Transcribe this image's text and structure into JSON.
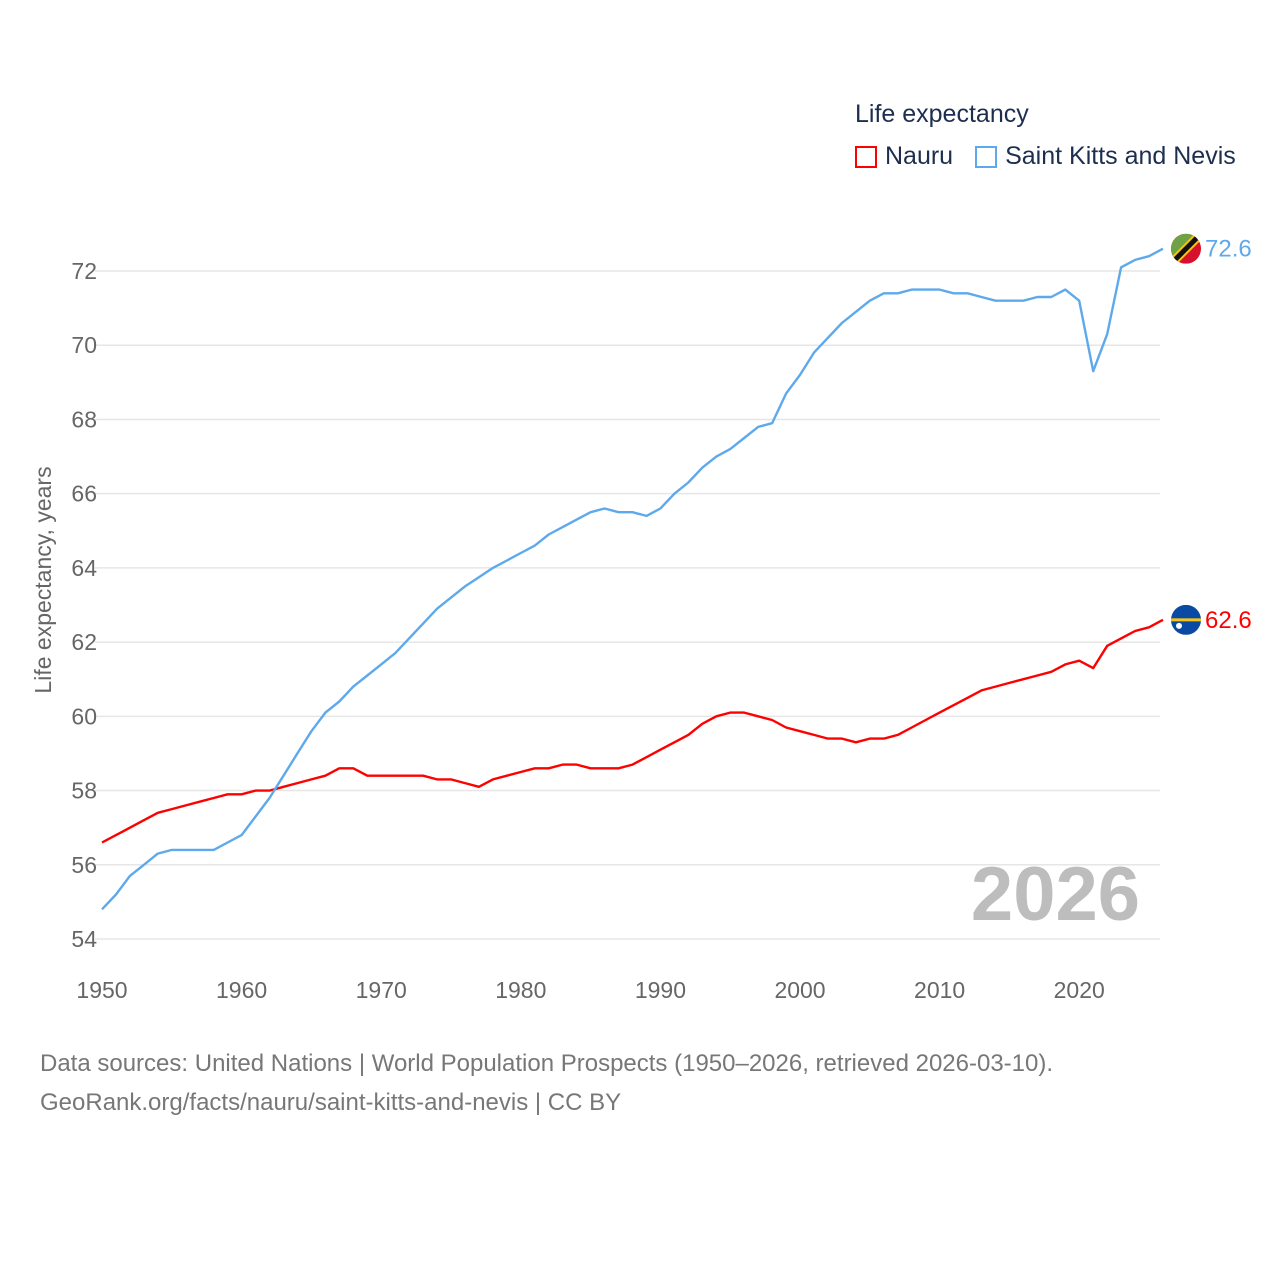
{
  "chart_data": {
    "type": "line",
    "title": "",
    "legend_title": "Life expectancy",
    "legend_placement": "top-right",
    "xlabel": "",
    "ylabel": "Life expectancy, years",
    "xlim": [
      1950,
      2026
    ],
    "ylim": [
      54,
      72.6
    ],
    "x_ticks": [
      "1950",
      "1960",
      "1970",
      "1980",
      "1990",
      "2000",
      "2010",
      "2020"
    ],
    "y_ticks": [
      "54",
      "56",
      "58",
      "60",
      "62",
      "64",
      "66",
      "68",
      "70",
      "72"
    ],
    "grid": true,
    "year_watermark": "2026",
    "x": [
      1950,
      1951,
      1952,
      1953,
      1954,
      1955,
      1956,
      1957,
      1958,
      1959,
      1960,
      1961,
      1962,
      1963,
      1964,
      1965,
      1966,
      1967,
      1968,
      1969,
      1970,
      1971,
      1972,
      1973,
      1974,
      1975,
      1976,
      1977,
      1978,
      1979,
      1980,
      1981,
      1982,
      1983,
      1984,
      1985,
      1986,
      1987,
      1988,
      1989,
      1990,
      1991,
      1992,
      1993,
      1994,
      1995,
      1996,
      1997,
      1998,
      1999,
      2000,
      2001,
      2002,
      2003,
      2004,
      2005,
      2006,
      2007,
      2008,
      2009,
      2010,
      2011,
      2012,
      2013,
      2014,
      2015,
      2016,
      2017,
      2018,
      2019,
      2020,
      2021,
      2022,
      2023,
      2024,
      2025,
      2026
    ],
    "series": [
      {
        "name": "Nauru",
        "color": "#ff0000",
        "end_label": "62.6",
        "values": [
          56.6,
          56.8,
          57.0,
          57.2,
          57.4,
          57.5,
          57.6,
          57.7,
          57.8,
          57.9,
          57.9,
          58.0,
          58.0,
          58.1,
          58.2,
          58.3,
          58.4,
          58.6,
          58.6,
          58.4,
          58.4,
          58.4,
          58.4,
          58.4,
          58.3,
          58.3,
          58.2,
          58.1,
          58.3,
          58.4,
          58.5,
          58.6,
          58.6,
          58.7,
          58.7,
          58.6,
          58.6,
          58.6,
          58.7,
          58.9,
          59.1,
          59.3,
          59.5,
          59.8,
          60.0,
          60.1,
          60.1,
          60.0,
          59.9,
          59.7,
          59.6,
          59.5,
          59.4,
          59.4,
          59.3,
          59.4,
          59.4,
          59.5,
          59.7,
          59.9,
          60.1,
          60.3,
          60.5,
          60.7,
          60.8,
          60.9,
          61.0,
          61.1,
          61.2,
          61.4,
          61.5,
          61.3,
          61.9,
          62.1,
          62.3,
          62.4,
          62.6
        ]
      },
      {
        "name": "Saint Kitts and Nevis",
        "color": "#5ea9ec",
        "end_label": "72.6",
        "values": [
          54.8,
          55.2,
          55.7,
          56.0,
          56.3,
          56.4,
          56.4,
          56.4,
          56.4,
          56.6,
          56.8,
          57.3,
          57.8,
          58.4,
          59.0,
          59.6,
          60.1,
          60.4,
          60.8,
          61.1,
          61.4,
          61.7,
          62.1,
          62.5,
          62.9,
          63.2,
          63.5,
          63.75,
          64.0,
          64.2,
          64.4,
          64.6,
          64.9,
          65.1,
          65.3,
          65.5,
          65.6,
          65.5,
          65.5,
          65.4,
          65.6,
          66.0,
          66.3,
          66.7,
          67.0,
          67.2,
          67.5,
          67.8,
          67.9,
          68.7,
          69.2,
          69.8,
          70.2,
          70.6,
          70.9,
          71.2,
          71.4,
          71.4,
          71.5,
          71.5,
          71.5,
          71.4,
          71.4,
          71.3,
          71.2,
          71.2,
          71.2,
          71.3,
          71.3,
          71.5,
          71.2,
          69.3,
          70.3,
          72.1,
          72.3,
          72.4,
          72.6
        ]
      }
    ]
  },
  "footer": {
    "line1": "Data sources: United Nations | World Population Prospects (1950–2026, retrieved 2026-03-10).",
    "line2": "GeoRank.org/facts/nauru/saint-kitts-and-nevis | CC BY"
  }
}
